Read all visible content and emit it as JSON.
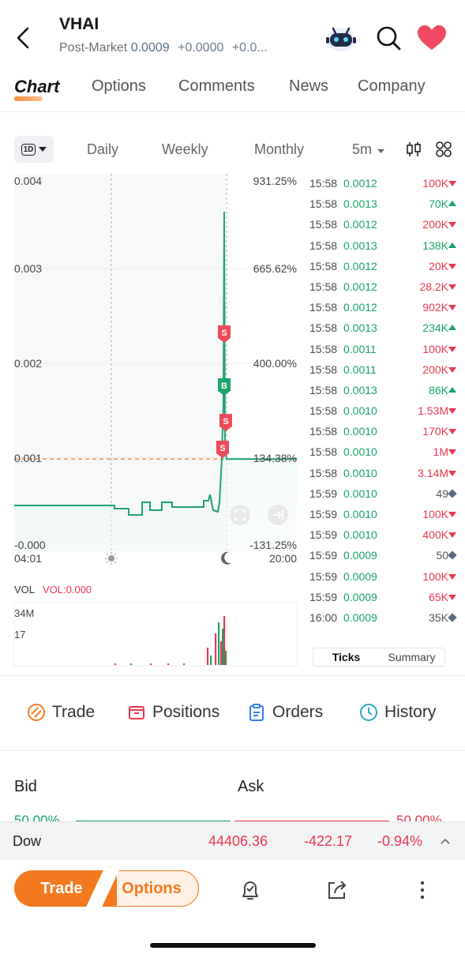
{
  "header": {
    "ticker": "VHAI",
    "session": "Post-Market",
    "price": "0.0009",
    "change": "+0.0000",
    "change_pct": "+0.0..."
  },
  "tabs": [
    "Chart",
    "Options",
    "Comments",
    "News",
    "Company"
  ],
  "period": {
    "selected": "1D",
    "items": [
      "Daily",
      "Weekly",
      "Monthly",
      "5m"
    ]
  },
  "chart": {
    "y_left": [
      "0.004",
      "0.003",
      "0.002",
      "0.001",
      "-0.000"
    ],
    "y_right": [
      "931.25%",
      "665.62%",
      "400.00%",
      "134.38%",
      "-131.25%"
    ],
    "x_labels": [
      "04:01",
      "20:00"
    ],
    "markers": [
      "S",
      "B",
      "S",
      "S"
    ],
    "vol_label": "VOL",
    "vol_value": "VOL:0.000",
    "vol_ticks": [
      "34M",
      "17"
    ]
  },
  "chart_data": {
    "type": "line",
    "ylim": [
      0,
      0.004
    ],
    "xlabel": "",
    "ylabel": "",
    "x_range": [
      "04:01",
      "20:00"
    ],
    "price_series_approx": [
      {
        "t": "04:01",
        "v": 0.0005
      },
      {
        "t": "08:00",
        "v": 0.0005
      },
      {
        "t": "09:30",
        "v": 0.00048
      },
      {
        "t": "12:00",
        "v": 0.00049
      },
      {
        "t": "15:30",
        "v": 0.00052
      },
      {
        "t": "15:58",
        "v": 0.0036
      },
      {
        "t": "16:00",
        "v": 0.001
      },
      {
        "t": "20:00",
        "v": 0.001
      }
    ],
    "reference_line": 0.00099,
    "grid": true,
    "legend": "none"
  },
  "ticks": [
    {
      "t": "15:58",
      "p": "0.0012",
      "v": "100K",
      "dir": "down"
    },
    {
      "t": "15:58",
      "p": "0.0013",
      "v": "70K",
      "dir": "up"
    },
    {
      "t": "15:58",
      "p": "0.0012",
      "v": "200K",
      "dir": "down"
    },
    {
      "t": "15:58",
      "p": "0.0013",
      "v": "138K",
      "dir": "up"
    },
    {
      "t": "15:58",
      "p": "0.0012",
      "v": "20K",
      "dir": "down"
    },
    {
      "t": "15:58",
      "p": "0.0012",
      "v": "28.2K",
      "dir": "down"
    },
    {
      "t": "15:58",
      "p": "0.0012",
      "v": "902K",
      "dir": "down"
    },
    {
      "t": "15:58",
      "p": "0.0013",
      "v": "234K",
      "dir": "up"
    },
    {
      "t": "15:58",
      "p": "0.0011",
      "v": "100K",
      "dir": "down"
    },
    {
      "t": "15:58",
      "p": "0.0011",
      "v": "200K",
      "dir": "down"
    },
    {
      "t": "15:58",
      "p": "0.0013",
      "v": "86K",
      "dir": "up"
    },
    {
      "t": "15:58",
      "p": "0.0010",
      "v": "1.53M",
      "dir": "down"
    },
    {
      "t": "15:58",
      "p": "0.0010",
      "v": "170K",
      "dir": "down"
    },
    {
      "t": "15:58",
      "p": "0.0010",
      "v": "1M",
      "dir": "down"
    },
    {
      "t": "15:58",
      "p": "0.0010",
      "v": "3.14M",
      "dir": "down"
    },
    {
      "t": "15:59",
      "p": "0.0010",
      "v": "49",
      "dir": "flat"
    },
    {
      "t": "15:59",
      "p": "0.0010",
      "v": "100K",
      "dir": "down"
    },
    {
      "t": "15:59",
      "p": "0.0010",
      "v": "400K",
      "dir": "down"
    },
    {
      "t": "15:59",
      "p": "0.0009",
      "v": "50",
      "dir": "flat"
    },
    {
      "t": "15:59",
      "p": "0.0009",
      "v": "100K",
      "dir": "down"
    },
    {
      "t": "15:59",
      "p": "0.0009",
      "v": "65K",
      "dir": "down"
    },
    {
      "t": "16:00",
      "p": "0.0009",
      "v": "35K",
      "dir": "flat"
    }
  ],
  "tick_tabs": [
    "Ticks",
    "Summary"
  ],
  "actions": [
    "Trade",
    "Positions",
    "Orders",
    "History"
  ],
  "bidask": {
    "bid": "Bid",
    "ask": "Ask",
    "bid_pct": "50.00%",
    "ask_pct": "50.00%"
  },
  "index_bar": {
    "name": "Dow",
    "value": "44406.36",
    "change": "-422.17",
    "change_pct": "-0.94%"
  },
  "bottom": {
    "trade": "Trade",
    "options": "Options"
  },
  "colors": {
    "up": "#18a36a",
    "down": "#e8384f",
    "accent": "#f47a20"
  }
}
